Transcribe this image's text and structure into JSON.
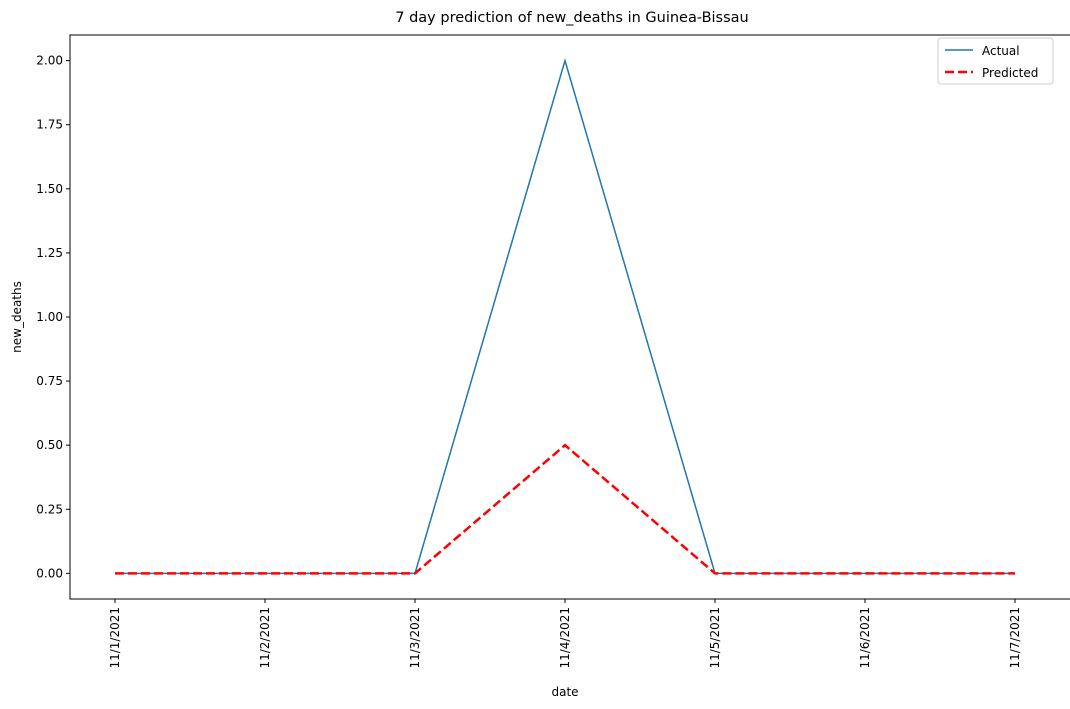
{
  "chart_data": {
    "type": "line",
    "title": "7 day prediction of new_deaths in Guinea-Bissau",
    "xlabel": "date",
    "ylabel": "new_deaths",
    "categories": [
      "11/1/2021",
      "11/2/2021",
      "11/3/2021",
      "11/4/2021",
      "11/5/2021",
      "11/6/2021",
      "11/7/2021"
    ],
    "yticks": [
      "0.00",
      "0.25",
      "0.50",
      "0.75",
      "1.00",
      "1.25",
      "1.50",
      "1.75",
      "2.00"
    ],
    "ylim": [
      -0.1,
      2.1
    ],
    "grid": false,
    "legend_position": "top-right",
    "series": [
      {
        "name": "Actual",
        "values": [
          0,
          0,
          0,
          2,
          0,
          0,
          0
        ],
        "color": "#1f77b4",
        "style": "solid"
      },
      {
        "name": "Predicted",
        "values": [
          0,
          0,
          0,
          0.5,
          0,
          0,
          0
        ],
        "color": "#ff0000",
        "style": "dashed"
      }
    ]
  }
}
